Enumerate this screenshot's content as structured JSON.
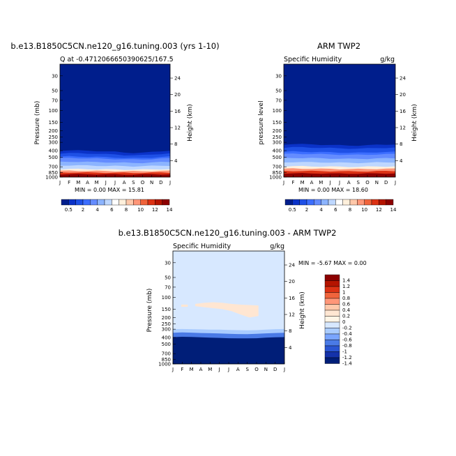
{
  "chart_data": [
    {
      "type": "heatmap",
      "panel": "model",
      "title": "b.e13.B1850C5CN.ne120_g16.tuning.003 (yrs 1-10)",
      "subtitle_left": "Q at -0.4712066650390625/167.5",
      "subtitle_right": "",
      "ylabel": "Pressure (mb)",
      "ylabel_right": "Height (km)",
      "x_ticks": [
        "J",
        "F",
        "M",
        "A",
        "M",
        "J",
        "J",
        "A",
        "S",
        "O",
        "N",
        "D",
        "J"
      ],
      "y_ticks": [
        30,
        50,
        70,
        100,
        150,
        200,
        250,
        300,
        400,
        500,
        700,
        850,
        1000
      ],
      "y_ticks_right": [
        24,
        20,
        16,
        12,
        8,
        4
      ],
      "ylim": [
        1000,
        20
      ],
      "minmax_text": "MIN =    0.00 MAX =   15.81",
      "min": 0.0,
      "max": 15.81,
      "contour_top_pressure_by_month": [
        {
          "level": 0.5,
          "p": [
            380,
            375,
            378,
            382,
            385,
            392,
            396,
            408,
            415,
            412,
            402,
            390,
            380
          ]
        },
        {
          "level": 2,
          "p": [
            440,
            435,
            438,
            442,
            445,
            452,
            458,
            466,
            470,
            468,
            458,
            447,
            440
          ]
        },
        {
          "level": 4,
          "p": [
            520,
            515,
            518,
            522,
            525,
            530,
            535,
            540,
            545,
            542,
            535,
            526,
            520
          ]
        },
        {
          "level": 8,
          "p": [
            760,
            755,
            758,
            760,
            762,
            765,
            768,
            770,
            772,
            770,
            766,
            762,
            760
          ]
        },
        {
          "level": 14,
          "p": [
            905,
            902,
            903,
            905,
            906,
            908,
            910,
            912,
            912,
            911,
            908,
            906,
            905
          ]
        }
      ]
    },
    {
      "type": "heatmap",
      "panel": "obs",
      "title": "ARM TWP2",
      "subtitle_left": "Specific Humidity",
      "subtitle_right": "g/kg",
      "ylabel": "pressure level",
      "ylabel_right": "Height (km)",
      "x_ticks": [
        "J",
        "F",
        "M",
        "A",
        "M",
        "J",
        "J",
        "A",
        "S",
        "O",
        "N",
        "D",
        "J"
      ],
      "y_ticks": [
        30,
        50,
        70,
        100,
        150,
        200,
        250,
        300,
        400,
        500,
        700,
        850,
        1000
      ],
      "y_ticks_right": [
        24,
        20,
        16,
        12,
        8,
        4
      ],
      "ylim": [
        1000,
        20
      ],
      "minmax_text": "MIN =    0.00 MAX =   18.60",
      "min": 0.0,
      "max": 18.6,
      "contour_top_pressure_by_month": [
        {
          "level": 0.5,
          "p": [
            305,
            300,
            302,
            305,
            308,
            312,
            315,
            318,
            318,
            315,
            310,
            307,
            305
          ]
        },
        {
          "level": 2,
          "p": [
            360,
            355,
            357,
            360,
            362,
            366,
            370,
            372,
            372,
            370,
            365,
            362,
            360
          ]
        },
        {
          "level": 4,
          "p": [
            450,
            445,
            447,
            450,
            452,
            456,
            460,
            462,
            462,
            460,
            455,
            452,
            450
          ]
        },
        {
          "level": 8,
          "p": [
            690,
            685,
            687,
            690,
            692,
            695,
            698,
            700,
            700,
            698,
            694,
            692,
            690
          ]
        },
        {
          "level": 14,
          "p": [
            880,
            878,
            879,
            880,
            881,
            883,
            885,
            886,
            886,
            885,
            883,
            881,
            880
          ]
        }
      ]
    },
    {
      "type": "heatmap",
      "panel": "difference",
      "title": "b.e13.B1850C5CN.ne120_g16.tuning.003 - ARM TWP2",
      "subtitle_left": "Specific Humidity",
      "subtitle_right": "g/kg",
      "ylabel": "Pressure (mb)",
      "ylabel_right": "Height (km)",
      "x_ticks": [
        "J",
        "F",
        "M",
        "A",
        "M",
        "J",
        "J",
        "A",
        "S",
        "O",
        "N",
        "D",
        "J"
      ],
      "y_ticks": [
        30,
        50,
        70,
        100,
        150,
        200,
        250,
        300,
        400,
        500,
        700,
        850,
        1000
      ],
      "y_ticks_right": [
        24,
        20,
        16,
        12,
        8,
        4
      ],
      "ylim": [
        1000,
        20
      ],
      "minmax_text": "MIN =   -5.67 MAX =    0.00",
      "min": -5.67,
      "max": 0.0,
      "background_level": -0.2,
      "positive_patch": {
        "level": 0.1,
        "month_range": [
          2.4,
          9.2
        ],
        "top_p": [
          125,
          120,
          118,
          120,
          125,
          128,
          130,
          132
        ],
        "bottom_p": [
          135,
          140,
          145,
          150,
          160,
          180,
          200,
          190
        ]
      },
      "small_patch": {
        "level": 0.1,
        "month_range": [
          0.9,
          1.6
        ],
        "top_p": 128,
        "bottom_p": 138
      },
      "negative_band_top_pressure_by_month": [
        {
          "level": -0.4,
          "p": [
            300,
            298,
            300,
            302,
            305,
            305,
            308,
            310,
            312,
            310,
            305,
            300,
            298
          ]
        },
        {
          "level": -0.8,
          "p": [
            340,
            335,
            338,
            342,
            345,
            348,
            352,
            355,
            356,
            352,
            346,
            342,
            340
          ]
        },
        {
          "level": -1.4,
          "p": [
            395,
            390,
            392,
            398,
            402,
            405,
            410,
            412,
            412,
            410,
            402,
            398,
            395
          ]
        }
      ]
    }
  ],
  "colorbar_top": {
    "labels": [
      "0.5",
      "2",
      "4",
      "6",
      "8",
      "10",
      "12",
      "14"
    ],
    "colors": [
      "#001e8c",
      "#0a32c8",
      "#1e50e6",
      "#3c6eff",
      "#648cff",
      "#8cb4ff",
      "#bed7ff",
      "#ffffff",
      "#fff0dc",
      "#ffc8aa",
      "#ff9678",
      "#f0643c",
      "#dc3214",
      "#b41400",
      "#8c0000"
    ]
  },
  "colorbar_diff": {
    "labels": [
      "1.4",
      "1.2",
      "1",
      "0.8",
      "0.6",
      "0.4",
      "0.2",
      "0",
      "-0.2",
      "-0.4",
      "-0.6",
      "-0.8",
      "-1",
      "-1.2",
      "-1.4"
    ],
    "colors": [
      "#8c0000",
      "#b41400",
      "#dc3214",
      "#f0643c",
      "#ff9678",
      "#ffc8aa",
      "#ffe6d2",
      "#fff5e6",
      "#d7e8ff",
      "#aaccff",
      "#7aa5ff",
      "#4a7ae6",
      "#2a55d2",
      "#1432aa",
      "#001e78"
    ]
  }
}
